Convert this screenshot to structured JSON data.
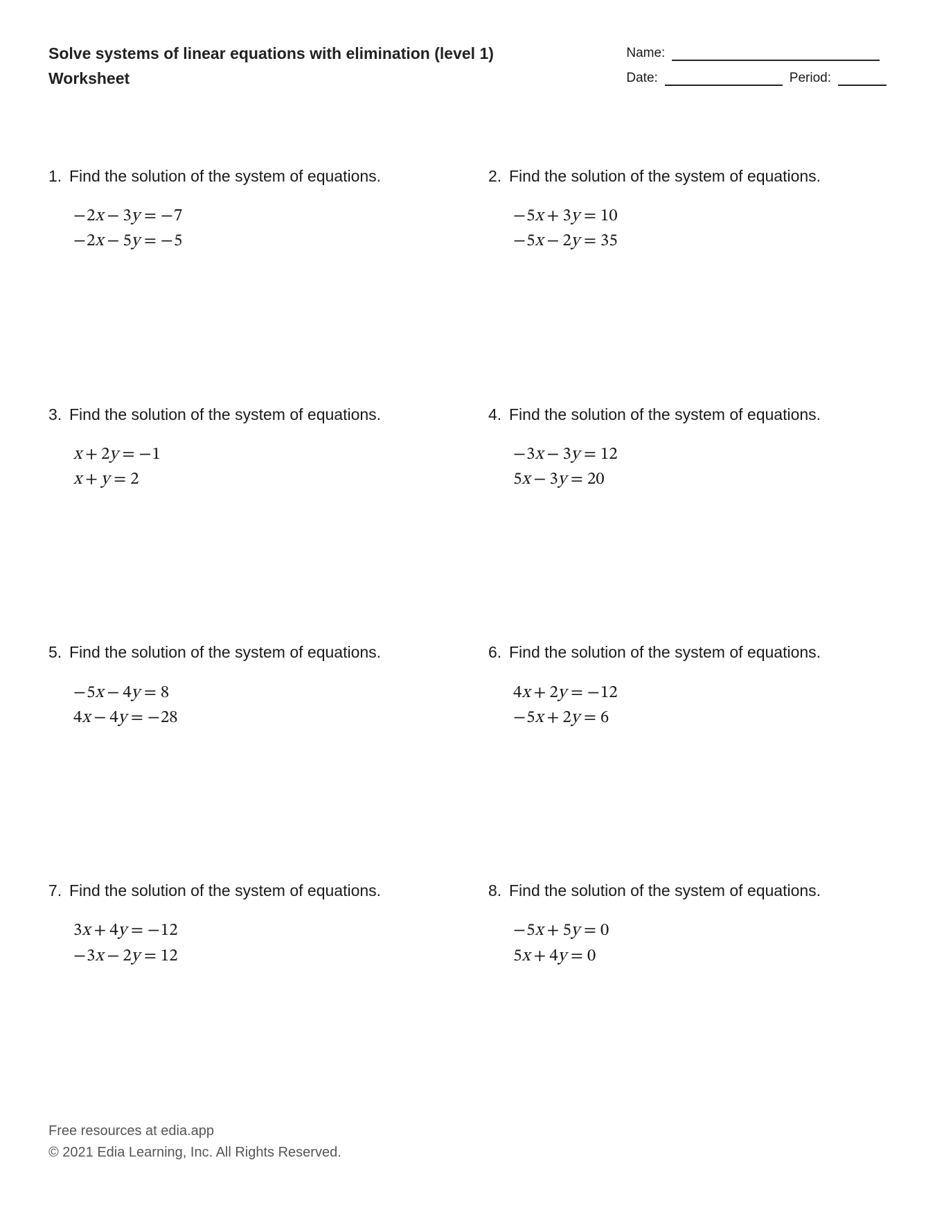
{
  "header": {
    "title_line1": "Solve systems of linear equations with elimination (level 1)",
    "title_line2": "Worksheet",
    "name_label": "Name:",
    "date_label": "Date:",
    "period_label": "Period:"
  },
  "prompt_text": "Find the solution of the system of equations.",
  "problems": [
    {
      "n": "1",
      "eq1": [
        {
          "t": "neg",
          "v": "−"
        },
        {
          "t": "num",
          "v": "2"
        },
        {
          "t": "var",
          "v": "x"
        },
        {
          "t": "op",
          "v": "−"
        },
        {
          "t": "num",
          "v": "3"
        },
        {
          "t": "var",
          "v": "y"
        },
        {
          "t": "eq",
          "v": "="
        },
        {
          "t": "neg",
          "v": "−"
        },
        {
          "t": "num",
          "v": "7"
        }
      ],
      "eq2": [
        {
          "t": "neg",
          "v": "−"
        },
        {
          "t": "num",
          "v": "2"
        },
        {
          "t": "var",
          "v": "x"
        },
        {
          "t": "op",
          "v": "−"
        },
        {
          "t": "num",
          "v": "5"
        },
        {
          "t": "var",
          "v": "y"
        },
        {
          "t": "eq",
          "v": "="
        },
        {
          "t": "neg",
          "v": "−"
        },
        {
          "t": "num",
          "v": "5"
        }
      ]
    },
    {
      "n": "2",
      "eq1": [
        {
          "t": "neg",
          "v": "−"
        },
        {
          "t": "num",
          "v": "5"
        },
        {
          "t": "var",
          "v": "x"
        },
        {
          "t": "op",
          "v": "+"
        },
        {
          "t": "num",
          "v": "3"
        },
        {
          "t": "var",
          "v": "y"
        },
        {
          "t": "eq",
          "v": "="
        },
        {
          "t": "num",
          "v": "10"
        }
      ],
      "eq2": [
        {
          "t": "neg",
          "v": "−"
        },
        {
          "t": "num",
          "v": "5"
        },
        {
          "t": "var",
          "v": "x"
        },
        {
          "t": "op",
          "v": "−"
        },
        {
          "t": "num",
          "v": "2"
        },
        {
          "t": "var",
          "v": "y"
        },
        {
          "t": "eq",
          "v": "="
        },
        {
          "t": "num",
          "v": "35"
        }
      ]
    },
    {
      "n": "3",
      "eq1": [
        {
          "t": "var",
          "v": "x"
        },
        {
          "t": "op",
          "v": "+"
        },
        {
          "t": "num",
          "v": "2"
        },
        {
          "t": "var",
          "v": "y"
        },
        {
          "t": "eq",
          "v": "="
        },
        {
          "t": "neg",
          "v": "−"
        },
        {
          "t": "num",
          "v": "1"
        }
      ],
      "eq2": [
        {
          "t": "var",
          "v": "x"
        },
        {
          "t": "op",
          "v": "+"
        },
        {
          "t": "var",
          "v": "y"
        },
        {
          "t": "eq",
          "v": "="
        },
        {
          "t": "num",
          "v": "2"
        }
      ]
    },
    {
      "n": "4",
      "eq1": [
        {
          "t": "neg",
          "v": "−"
        },
        {
          "t": "num",
          "v": "3"
        },
        {
          "t": "var",
          "v": "x"
        },
        {
          "t": "op",
          "v": "−"
        },
        {
          "t": "num",
          "v": "3"
        },
        {
          "t": "var",
          "v": "y"
        },
        {
          "t": "eq",
          "v": "="
        },
        {
          "t": "num",
          "v": "12"
        }
      ],
      "eq2": [
        {
          "t": "num",
          "v": "5"
        },
        {
          "t": "var",
          "v": "x"
        },
        {
          "t": "op",
          "v": "−"
        },
        {
          "t": "num",
          "v": "3"
        },
        {
          "t": "var",
          "v": "y"
        },
        {
          "t": "eq",
          "v": "="
        },
        {
          "t": "num",
          "v": "20"
        }
      ]
    },
    {
      "n": "5",
      "eq1": [
        {
          "t": "neg",
          "v": "−"
        },
        {
          "t": "num",
          "v": "5"
        },
        {
          "t": "var",
          "v": "x"
        },
        {
          "t": "op",
          "v": "−"
        },
        {
          "t": "num",
          "v": "4"
        },
        {
          "t": "var",
          "v": "y"
        },
        {
          "t": "eq",
          "v": "="
        },
        {
          "t": "num",
          "v": "8"
        }
      ],
      "eq2": [
        {
          "t": "num",
          "v": "4"
        },
        {
          "t": "var",
          "v": "x"
        },
        {
          "t": "op",
          "v": "−"
        },
        {
          "t": "num",
          "v": "4"
        },
        {
          "t": "var",
          "v": "y"
        },
        {
          "t": "eq",
          "v": "="
        },
        {
          "t": "neg",
          "v": "−"
        },
        {
          "t": "num",
          "v": "28"
        }
      ]
    },
    {
      "n": "6",
      "eq1": [
        {
          "t": "num",
          "v": "4"
        },
        {
          "t": "var",
          "v": "x"
        },
        {
          "t": "op",
          "v": "+"
        },
        {
          "t": "num",
          "v": "2"
        },
        {
          "t": "var",
          "v": "y"
        },
        {
          "t": "eq",
          "v": "="
        },
        {
          "t": "neg",
          "v": "−"
        },
        {
          "t": "num",
          "v": "12"
        }
      ],
      "eq2": [
        {
          "t": "neg",
          "v": "−"
        },
        {
          "t": "num",
          "v": "5"
        },
        {
          "t": "var",
          "v": "x"
        },
        {
          "t": "op",
          "v": "+"
        },
        {
          "t": "num",
          "v": "2"
        },
        {
          "t": "var",
          "v": "y"
        },
        {
          "t": "eq",
          "v": "="
        },
        {
          "t": "num",
          "v": "6"
        }
      ]
    },
    {
      "n": "7",
      "eq1": [
        {
          "t": "num",
          "v": "3"
        },
        {
          "t": "var",
          "v": "x"
        },
        {
          "t": "op",
          "v": "+"
        },
        {
          "t": "num",
          "v": "4"
        },
        {
          "t": "var",
          "v": "y"
        },
        {
          "t": "eq",
          "v": "="
        },
        {
          "t": "neg",
          "v": "−"
        },
        {
          "t": "num",
          "v": "12"
        }
      ],
      "eq2": [
        {
          "t": "neg",
          "v": "−"
        },
        {
          "t": "num",
          "v": "3"
        },
        {
          "t": "var",
          "v": "x"
        },
        {
          "t": "op",
          "v": "−"
        },
        {
          "t": "num",
          "v": "2"
        },
        {
          "t": "var",
          "v": "y"
        },
        {
          "t": "eq",
          "v": "="
        },
        {
          "t": "num",
          "v": "12"
        }
      ]
    },
    {
      "n": "8",
      "eq1": [
        {
          "t": "neg",
          "v": "−"
        },
        {
          "t": "num",
          "v": "5"
        },
        {
          "t": "var",
          "v": "x"
        },
        {
          "t": "op",
          "v": "+"
        },
        {
          "t": "num",
          "v": "5"
        },
        {
          "t": "var",
          "v": "y"
        },
        {
          "t": "eq",
          "v": "="
        },
        {
          "t": "num",
          "v": "0"
        }
      ],
      "eq2": [
        {
          "t": "num",
          "v": "5"
        },
        {
          "t": "var",
          "v": "x"
        },
        {
          "t": "op",
          "v": "+"
        },
        {
          "t": "num",
          "v": "4"
        },
        {
          "t": "var",
          "v": "y"
        },
        {
          "t": "eq",
          "v": "="
        },
        {
          "t": "num",
          "v": "0"
        }
      ]
    }
  ],
  "footer": {
    "line1": "Free resources at edia.app",
    "line2": "© 2021 Edia Learning, Inc. All Rights Reserved."
  }
}
